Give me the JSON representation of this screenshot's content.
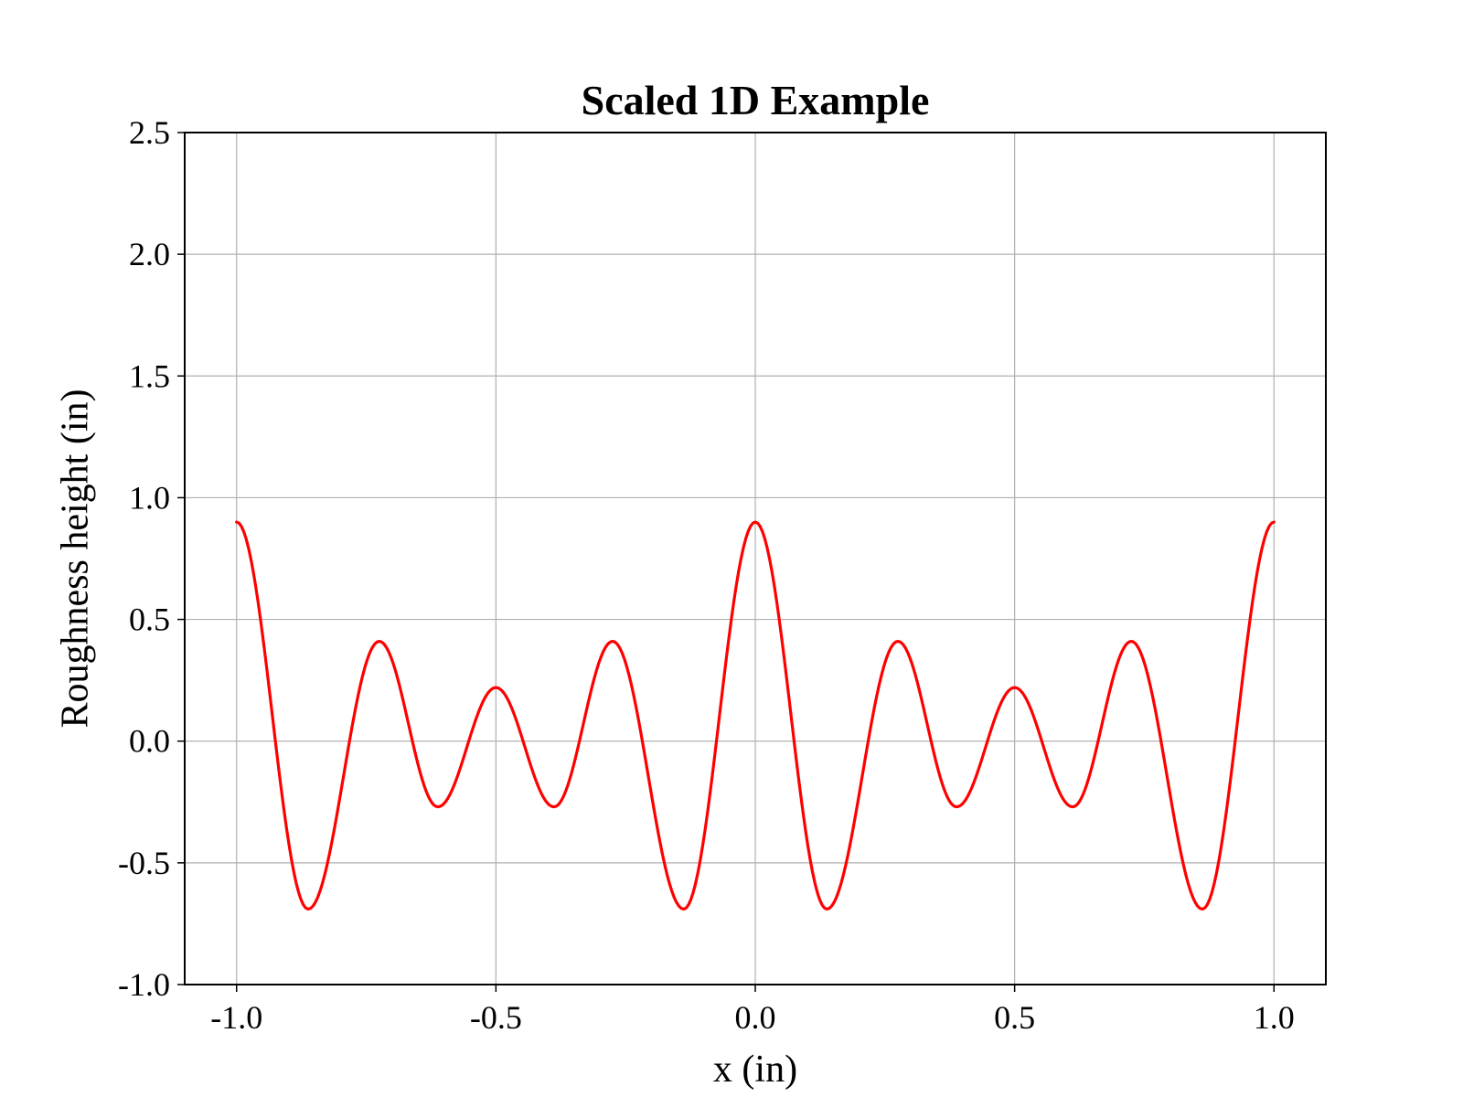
{
  "chart_data": {
    "type": "line",
    "title": "Scaled 1D Example",
    "xlabel": "x (in)",
    "ylabel": "Roughness height (in)",
    "xlim": [
      -1.1,
      1.1
    ],
    "ylim": [
      -1.0,
      2.5
    ],
    "x_ticks": [
      -1.0,
      -0.5,
      0.0,
      0.5,
      1.0
    ],
    "x_tick_labels": [
      "-1.0",
      "-0.5",
      "0.0",
      "0.5",
      "1.0"
    ],
    "y_ticks": [
      -1.0,
      -0.5,
      0.0,
      0.5,
      1.0,
      1.5,
      2.0,
      2.5
    ],
    "y_tick_labels": [
      "-1.0",
      "-0.5",
      "0.0",
      "0.5",
      "1.0",
      "1.5",
      "2.0",
      "2.5"
    ],
    "grid": true,
    "series": [
      {
        "color": "#ff0000",
        "x": [
          -1.0,
          -0.862,
          -0.725,
          -0.612,
          -0.5,
          -0.388,
          -0.275,
          -0.138,
          0.0,
          0.138,
          0.275,
          0.388,
          0.5,
          0.612,
          0.725,
          0.862,
          1.0
        ],
        "y": [
          0.9,
          -0.69,
          0.41,
          -0.27,
          0.22,
          -0.27,
          0.41,
          -0.69,
          0.9,
          -0.69,
          0.41,
          -0.27,
          0.22,
          -0.27,
          0.41,
          -0.69,
          0.9
        ]
      }
    ]
  }
}
